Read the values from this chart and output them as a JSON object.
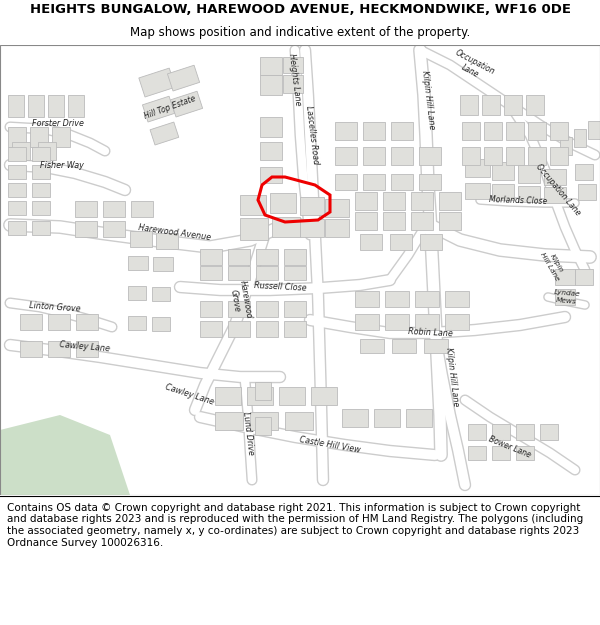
{
  "title_line1": "HEIGHTS BUNGALOW, HAREWOOD AVENUE, HECKMONDWIKE, WF16 0DE",
  "title_line2": "Map shows position and indicative extent of the property.",
  "copyright_text": "Contains OS data © Crown copyright and database right 2021. This information is subject to Crown copyright and database rights 2023 and is reproduced with the permission of HM Land Registry. The polygons (including the associated geometry, namely x, y co-ordinates) are subject to Crown copyright and database rights 2023 Ordnance Survey 100026316.",
  "map_bg": "#f2f2ee",
  "road_color": "#ffffff",
  "road_outline": "#cccccc",
  "building_color": "#e0e0dc",
  "building_edge": "#bbbbbb",
  "green_color": "#ccdfc8",
  "red_polygon_color": "#ee0000",
  "title_fontsize": 9.5,
  "subtitle_fontsize": 8.5,
  "copyright_fontsize": 7.5,
  "fig_width": 6.0,
  "fig_height": 6.25
}
